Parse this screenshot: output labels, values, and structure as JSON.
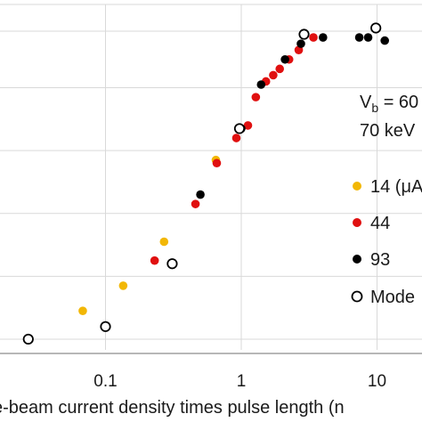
{
  "chart_data": {
    "type": "scatter",
    "x_scale": "log",
    "xlim": [
      0.02,
      15
    ],
    "ylim": [
      0,
      1
    ],
    "grid": true,
    "xlabel": "e-beam current density times pulse length (n",
    "x_ticks": [
      {
        "value": 0.1,
        "label": "0.1"
      },
      {
        "value": 1,
        "label": "1"
      },
      {
        "value": 10,
        "label": "10"
      }
    ],
    "y_gridlines": [
      0.02,
      0.22,
      0.42,
      0.62,
      0.82,
      1.0
    ],
    "annotation": {
      "line1_base": "V",
      "line1_sub": "b",
      "line1_rest": " = 60",
      "line2": "70 keV"
    },
    "legend": [
      {
        "label": "14 (μA",
        "color": "#f2b705",
        "marker": "filled"
      },
      {
        "label": "44",
        "color": "#e01010",
        "marker": "filled"
      },
      {
        "label": "93",
        "color": "#000000",
        "marker": "filled"
      },
      {
        "label": "Mode",
        "color": "#000000",
        "marker": "open"
      }
    ],
    "series": [
      {
        "name": "14 (μA",
        "color": "#f2b705",
        "marker": "filled",
        "points": [
          [
            0.068,
            0.11
          ],
          [
            0.135,
            0.19
          ],
          [
            0.27,
            0.33
          ],
          [
            0.65,
            0.59
          ]
        ]
      },
      {
        "name": "44",
        "color": "#e01010",
        "marker": "filled",
        "points": [
          [
            0.23,
            0.27
          ],
          [
            0.46,
            0.45
          ],
          [
            0.66,
            0.58
          ],
          [
            0.92,
            0.66
          ],
          [
            1.12,
            0.7
          ],
          [
            1.28,
            0.79
          ],
          [
            1.52,
            0.84
          ],
          [
            1.72,
            0.86
          ],
          [
            1.92,
            0.88
          ],
          [
            2.25,
            0.91
          ],
          [
            2.65,
            0.94
          ],
          [
            3.4,
            0.98
          ]
        ]
      },
      {
        "name": "93",
        "color": "#000000",
        "marker": "filled",
        "points": [
          [
            0.5,
            0.48
          ],
          [
            1.0,
            0.69
          ],
          [
            1.4,
            0.83
          ],
          [
            2.1,
            0.91
          ],
          [
            2.75,
            0.96
          ],
          [
            4.0,
            0.98
          ],
          [
            7.4,
            0.98
          ],
          [
            8.6,
            0.98
          ],
          [
            11.4,
            0.97
          ]
        ]
      },
      {
        "name": "Mode",
        "color": "#000000",
        "marker": "open",
        "points": [
          [
            0.027,
            0.02
          ],
          [
            0.1,
            0.06
          ],
          [
            0.31,
            0.26
          ],
          [
            0.97,
            0.69
          ],
          [
            2.9,
            0.99
          ],
          [
            9.8,
            1.01
          ]
        ]
      }
    ]
  }
}
